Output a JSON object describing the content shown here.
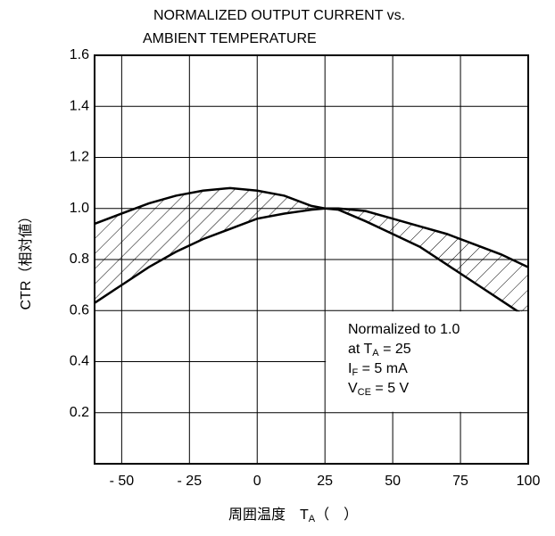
{
  "chart_data": {
    "type": "line",
    "title": [
      "NORMALIZED OUTPUT CURRENT vs.",
      "AMBIENT TEMPERATURE"
    ],
    "y_label": "CTR（相対値）",
    "x_label": [
      {
        "text": "周囲温度　T"
      },
      {
        "text": "A",
        "sub": true
      },
      {
        "text": "（　）"
      }
    ],
    "annotation": [
      [
        {
          "text": "Normalized to 1.0"
        }
      ],
      [
        {
          "text": "at T"
        },
        {
          "text": "A",
          "sub": true
        },
        {
          "text": " = 25"
        }
      ],
      [
        {
          "text": "I"
        },
        {
          "text": "F",
          "sub": true
        },
        {
          "text": " = 5 mA"
        }
      ],
      [
        {
          "text": "V"
        },
        {
          "text": "CE",
          "sub": true
        },
        {
          "text": " = 5 V"
        }
      ]
    ],
    "xlim": [
      -60,
      100
    ],
    "xticks": [
      {
        "value": -50,
        "label": "- 50"
      },
      {
        "value": -25,
        "label": "- 25"
      },
      0,
      25,
      50,
      75,
      100
    ],
    "ylim": [
      0,
      1.6
    ],
    "yticks": [
      0.2,
      0.4,
      0.6,
      0.8,
      {
        "value": 1,
        "label": "1.0"
      },
      1.2,
      1.4,
      1.6
    ],
    "grid": true,
    "hatch_between": true,
    "series": [
      {
        "color": "#000000",
        "x": [
          -60,
          -50,
          -40,
          -30,
          -20,
          -10,
          0,
          10,
          20,
          25,
          30,
          40,
          50,
          60,
          70,
          80,
          90,
          100
        ],
        "values": [
          0.94,
          0.98,
          1.02,
          1.05,
          1.07,
          1.08,
          1.07,
          1.05,
          1.01,
          1.0,
          1.0,
          0.99,
          0.96,
          0.93,
          0.9,
          0.86,
          0.82,
          0.77
        ]
      },
      {
        "color": "#000000",
        "x": [
          -60,
          -50,
          -40,
          -30,
          -20,
          -10,
          0,
          10,
          20,
          25,
          30,
          40,
          50,
          60,
          70,
          80,
          90,
          100
        ],
        "values": [
          0.63,
          0.7,
          0.77,
          0.83,
          0.88,
          0.92,
          0.96,
          0.98,
          0.995,
          1.0,
          0.995,
          0.95,
          0.9,
          0.85,
          0.78,
          0.71,
          0.64,
          0.57
        ]
      }
    ]
  }
}
